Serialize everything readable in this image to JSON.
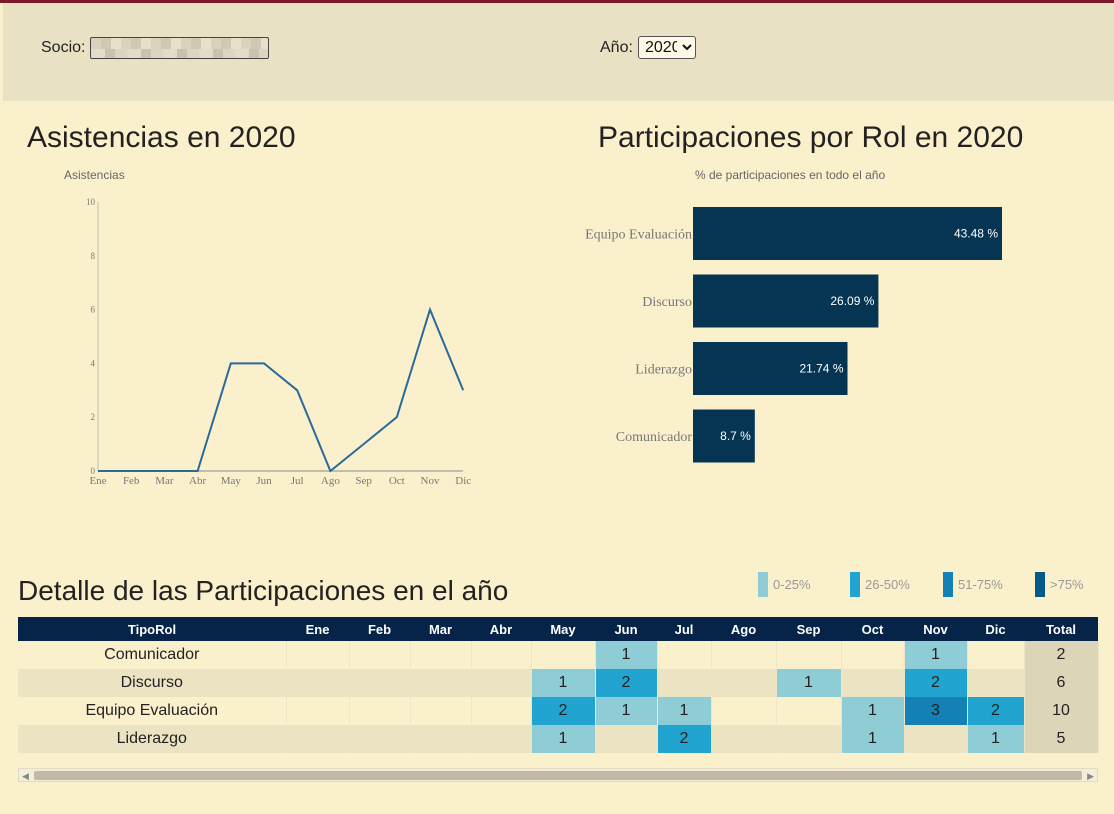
{
  "filters": {
    "socio_label": "Socio:",
    "anio_label": "Año:",
    "anio_value": "2020"
  },
  "line_panel": {
    "title": "Asistencias en 2020",
    "subtitle": "Asistencias"
  },
  "bar_panel": {
    "title": "Participaciones por Rol en 2020",
    "subtitle": "% de participaciones en todo el año"
  },
  "table_panel": {
    "title": "Detalle de las Participaciones en el año",
    "legend": [
      {
        "label": "0-25%",
        "color": "#8fcdd6"
      },
      {
        "label": "26-50%",
        "color": "#21a4cf"
      },
      {
        "label": "51-75%",
        "color": "#1381b6"
      },
      {
        "label": ">75%",
        "color": "#035b8a"
      }
    ],
    "columns": [
      "TipoRol",
      "Ene",
      "Feb",
      "Mar",
      "Abr",
      "May",
      "Jun",
      "Jul",
      "Ago",
      "Sep",
      "Oct",
      "Nov",
      "Dic",
      "Total"
    ],
    "rows": [
      {
        "rol": "Comunicador",
        "values": [
          "",
          "",
          "",
          "",
          "",
          "1",
          "",
          "",
          "",
          "",
          "1",
          ""
        ],
        "levels": [
          0,
          0,
          0,
          0,
          0,
          1,
          0,
          0,
          0,
          0,
          1,
          0
        ],
        "total": "2"
      },
      {
        "rol": "Discurso",
        "values": [
          "",
          "",
          "",
          "",
          "1",
          "2",
          "",
          "",
          "1",
          "",
          "2",
          ""
        ],
        "levels": [
          0,
          0,
          0,
          0,
          1,
          2,
          0,
          0,
          1,
          0,
          2,
          0
        ],
        "total": "6"
      },
      {
        "rol": "Equipo Evaluación",
        "values": [
          "",
          "",
          "",
          "",
          "2",
          "1",
          "1",
          "",
          "",
          "1",
          "3",
          "2"
        ],
        "levels": [
          0,
          0,
          0,
          0,
          2,
          1,
          1,
          0,
          0,
          1,
          3,
          2
        ],
        "total": "10"
      },
      {
        "rol": "Liderazgo",
        "values": [
          "",
          "",
          "",
          "",
          "1",
          "",
          "2",
          "",
          "",
          "1",
          "",
          "1"
        ],
        "levels": [
          0,
          0,
          0,
          0,
          1,
          0,
          2,
          0,
          0,
          1,
          0,
          1
        ],
        "total": "5"
      }
    ]
  },
  "chart_data": [
    {
      "type": "line",
      "title": "Asistencias en 2020",
      "ylabel": "Asistencias",
      "x": [
        "Ene",
        "Feb",
        "Mar",
        "Abr",
        "May",
        "Jun",
        "Jul",
        "Ago",
        "Sep",
        "Oct",
        "Nov",
        "Dic"
      ],
      "y": [
        0,
        0,
        0,
        0,
        4,
        4,
        3,
        0,
        1,
        2,
        6,
        3
      ],
      "ylim": [
        0,
        10
      ],
      "yticks": [
        0,
        2,
        4,
        6,
        8,
        10
      ],
      "color": "#2a6a9a"
    },
    {
      "type": "bar",
      "orientation": "horizontal",
      "title": "Participaciones por Rol en 2020",
      "xlabel": "% de participaciones en todo el año",
      "categories": [
        "Equipo Evaluación",
        "Discurso",
        "Liderazgo",
        "Comunicador"
      ],
      "values": [
        43.48,
        26.09,
        21.74,
        8.7
      ],
      "value_labels": [
        "43.48 %",
        "26.09 %",
        "21.74 %",
        "8.7 %"
      ],
      "xlim": [
        0,
        43.48
      ],
      "color": "#063553"
    }
  ]
}
